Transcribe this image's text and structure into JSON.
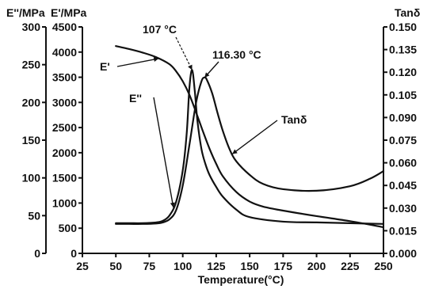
{
  "chart_data": {
    "type": "line",
    "xlabel": "Temperature(°C)",
    "x_ticks": [
      "25",
      "50",
      "75",
      "100",
      "125",
      "150",
      "175",
      "200",
      "225",
      "250"
    ],
    "xlim": [
      25,
      250
    ],
    "axes": {
      "left_outer": {
        "label": "E''/MPa",
        "ylim": [
          0,
          300
        ],
        "ticks": [
          "0",
          "50",
          "100",
          "150",
          "200",
          "250",
          "300"
        ]
      },
      "left_inner": {
        "label": "E'/MPa",
        "ylim": [
          0,
          4500
        ],
        "ticks": [
          "0",
          "500",
          "1000",
          "1500",
          "2000",
          "2500",
          "3000",
          "3500",
          "4000",
          "4500"
        ]
      },
      "right": {
        "label": "Tanδ",
        "ylim": [
          0.0,
          0.15
        ],
        "ticks": [
          "0.000",
          "0.015",
          "0.030",
          "0.045",
          "0.060",
          "0.075",
          "0.090",
          "0.105",
          "0.120",
          "0.135",
          "0.150"
        ]
      }
    },
    "series": [
      {
        "name": "E'",
        "axis": "left_inner",
        "x": [
          50,
          60,
          70,
          80,
          90,
          95,
          100,
          105,
          110,
          115,
          120,
          125,
          130,
          140,
          150,
          160,
          175,
          200,
          225,
          250
        ],
        "values": [
          4120,
          4060,
          3990,
          3900,
          3760,
          3620,
          3420,
          3150,
          2800,
          2430,
          2080,
          1780,
          1530,
          1220,
          1030,
          930,
          850,
          740,
          640,
          520
        ]
      },
      {
        "name": "E''",
        "axis": "left_outer",
        "x": [
          50,
          60,
          70,
          80,
          85,
          90,
          95,
          100,
          103,
          105,
          107,
          109,
          111,
          114,
          117,
          120,
          125,
          130,
          140,
          150,
          175,
          200,
          225,
          250
        ],
        "values": [
          40,
          40,
          40,
          41,
          43,
          50,
          68,
          110,
          160,
          220,
          243,
          215,
          175,
          138,
          118,
          104,
          88,
          75,
          58,
          48,
          42,
          41,
          40,
          39
        ]
      },
      {
        "name": "Tanδ",
        "axis": "right",
        "x": [
          50,
          60,
          70,
          80,
          85,
          90,
          95,
          100,
          105,
          110,
          114,
          116.3,
          118,
          122,
          126,
          130,
          135,
          140,
          150,
          160,
          175,
          200,
          225,
          240,
          250
        ],
        "values": [
          0.0195,
          0.0195,
          0.0195,
          0.0198,
          0.0205,
          0.0225,
          0.0285,
          0.045,
          0.072,
          0.1,
          0.114,
          0.1165,
          0.115,
          0.106,
          0.093,
          0.081,
          0.069,
          0.061,
          0.052,
          0.046,
          0.0425,
          0.0415,
          0.0445,
          0.0495,
          0.0545
        ]
      }
    ],
    "annotations": [
      {
        "text": "107 °C",
        "target": {
          "series": "E''",
          "x": 107
        }
      },
      {
        "text": "116.30 °C",
        "target": {
          "series": "Tanδ",
          "x": 116.3
        }
      },
      {
        "text": "E'",
        "target": {
          "series": "E'",
          "x": 82
        }
      },
      {
        "text": "E''",
        "target": {
          "series": "E''",
          "x": 93
        }
      },
      {
        "text": "Tanδ",
        "target": {
          "series": "Tanδ",
          "x": 137
        }
      }
    ]
  }
}
